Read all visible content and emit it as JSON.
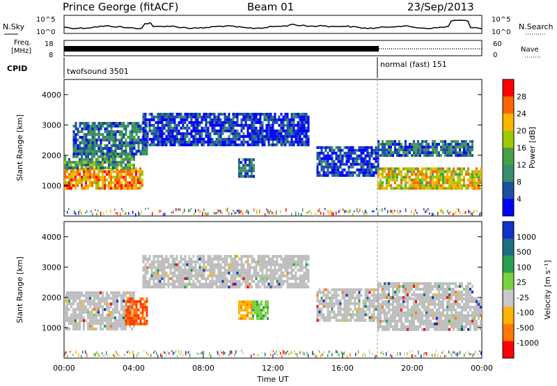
{
  "header": {
    "station": "Prince George (fitACF)",
    "beam": "Beam 01",
    "date": "23/Sep/2013"
  },
  "top_strip": {
    "left_label": "N.Sky",
    "right_label": "N.Search",
    "left_ticks": [
      "10^5",
      "10^0"
    ],
    "right_ticks": [
      "10^5",
      "10^0"
    ]
  },
  "freq_strip": {
    "left_label_line1": "Freq.",
    "left_label_line2": "[MHz]",
    "left_ticks": [
      "18",
      "8"
    ],
    "right_label": "Nave",
    "right_ticks": [
      "60",
      "0"
    ]
  },
  "cpid": {
    "label": "CPID",
    "segments": [
      {
        "name": "twofsound 3501",
        "start_hour": 0,
        "end_hour": 18
      },
      {
        "name": "normal (fast) 151",
        "start_hour": 18,
        "end_hour": 24
      }
    ]
  },
  "colors": {
    "power_scale": [
      "#0000ff",
      "#1e50a0",
      "#3c8c6e",
      "#46a046",
      "#a0c800",
      "#ffb400",
      "#ff6400",
      "#ff0000"
    ],
    "velocity_scale": [
      "#1432c8",
      "#1e6e82",
      "#28a050",
      "#78d23c",
      "#c8c8c8",
      "#ffb400",
      "#ff7800",
      "#ff0000"
    ],
    "ground_scatter": "#bebebe"
  },
  "chart_data": [
    {
      "type": "heatmap",
      "name": "power",
      "ylabel": "Slant Range [km]",
      "ylim": [
        0,
        4500
      ],
      "yticks": [
        "1000",
        "2000",
        "3000",
        "4000"
      ],
      "colorbar_label": "Power [dB]",
      "colorbar_ticks": [
        "4",
        "8",
        "12",
        "16",
        "20",
        "24",
        "28"
      ],
      "regions": [
        {
          "t0": 0.0,
          "t1": 4.5,
          "r0": 900,
          "r1": 1600,
          "level": 27
        },
        {
          "t0": 0.0,
          "t1": 4.0,
          "r0": 1600,
          "r1": 2000,
          "level": 17
        },
        {
          "t0": 0.5,
          "t1": 4.8,
          "r0": 2000,
          "r1": 3100,
          "level": 10
        },
        {
          "t0": 4.5,
          "t1": 14.0,
          "r0": 2300,
          "r1": 3400,
          "level": 8
        },
        {
          "t0": 10.0,
          "t1": 10.9,
          "r0": 1300,
          "r1": 1900,
          "level": 10
        },
        {
          "t0": 14.5,
          "t1": 18.0,
          "r0": 1300,
          "r1": 2300,
          "level": 9
        },
        {
          "t0": 18.0,
          "t1": 24.0,
          "r0": 950,
          "r1": 1600,
          "level": 25
        },
        {
          "t0": 18.0,
          "t1": 23.5,
          "r0": 2000,
          "r1": 2500,
          "level": 10
        }
      ]
    },
    {
      "type": "heatmap",
      "name": "velocity",
      "ylabel": "Slant Range [km]",
      "xlabel": "Time UT",
      "ylim": [
        0,
        4500
      ],
      "yticks": [
        "1000",
        "2000",
        "3000",
        "4000"
      ],
      "xticks": [
        "00:00",
        "04:00",
        "08:00",
        "12:00",
        "16:00",
        "20:00",
        "00:00"
      ],
      "colorbar_label": "Velocity [m s⁻¹]",
      "colorbar_ticks": [
        "1000",
        "500",
        "100",
        "25",
        "-25",
        "-100",
        "-500",
        "-1000"
      ],
      "regions": [
        {
          "t0": 0.0,
          "t1": 4.0,
          "r0": 1000,
          "r1": 2200,
          "level": 0
        },
        {
          "t0": 3.5,
          "t1": 4.8,
          "r0": 1100,
          "r1": 2000,
          "level": -700
        },
        {
          "t0": 4.5,
          "t1": 14.0,
          "r0": 2300,
          "r1": 3400,
          "level": 0
        },
        {
          "t0": 10.0,
          "t1": 10.8,
          "r0": 1300,
          "r1": 1900,
          "level": -150
        },
        {
          "t0": 10.8,
          "t1": 11.7,
          "r0": 1300,
          "r1": 1900,
          "level": 200
        },
        {
          "t0": 14.5,
          "t1": 18.0,
          "r0": 1200,
          "r1": 2300,
          "level": 0
        },
        {
          "t0": 18.0,
          "t1": 24.0,
          "r0": 900,
          "r1": 2000,
          "level": 0
        },
        {
          "t0": 18.0,
          "t1": 23.5,
          "r0": 2000,
          "r1": 2500,
          "level": 0
        }
      ]
    }
  ]
}
